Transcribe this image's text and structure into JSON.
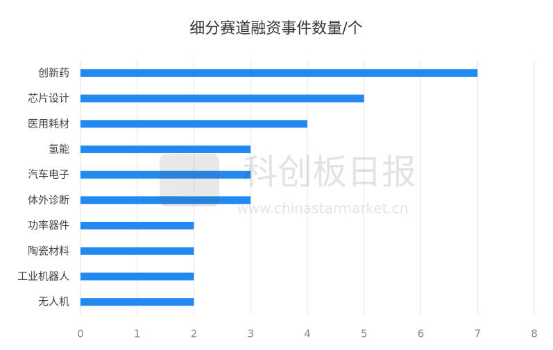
{
  "chart_data": {
    "type": "hbar",
    "title": "细分赛道融资事件数量/个",
    "categories": [
      "创新药",
      "芯片设计",
      "医用耗材",
      "氢能",
      "汽车电子",
      "体外诊断",
      "功率器件",
      "陶瓷材料",
      "工业机器人",
      "无人机"
    ],
    "values": [
      7,
      5,
      4,
      3,
      3,
      3,
      2,
      2,
      2,
      2
    ],
    "color": "#2189f0",
    "xlim": [
      0,
      8
    ],
    "xticks": [
      0,
      1,
      2,
      3,
      4,
      5,
      6,
      7,
      8
    ],
    "grid": true
  },
  "watermark": {
    "text": "科创板日报",
    "url": "www.chinastarmarket.cn"
  }
}
